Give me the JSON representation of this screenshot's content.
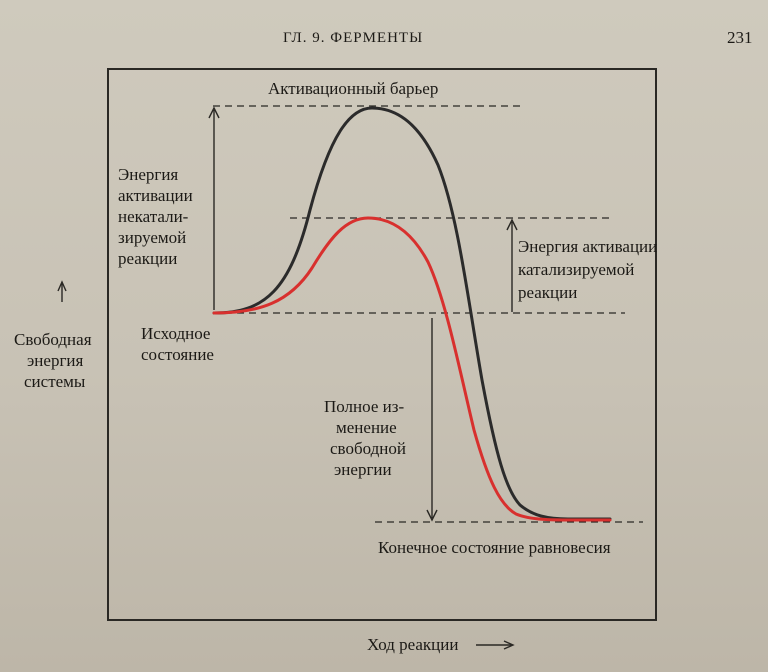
{
  "header": {
    "chapter": "ГЛ. 9. ФЕРМЕНТЫ",
    "page_number": "231"
  },
  "diagram": {
    "barrier_label": "Активационный барьер",
    "uncatalyzed_energy_label": [
      "Энергия",
      "активации",
      "некатали-",
      "зируемой",
      "реакции"
    ],
    "catalyzed_energy_label": [
      "Энергия активации",
      "катализируемой",
      "реакции"
    ],
    "y_axis_label": [
      "Свободная",
      "энергия",
      "системы"
    ],
    "initial_state_label": [
      "Исходное",
      "состояние"
    ],
    "total_change_label": [
      "Полное из-",
      "менение",
      "свободной",
      "энергии"
    ],
    "final_state_label": "Конечное состояние равновесия",
    "x_axis_label": "Ход реакции",
    "curves": [
      {
        "id": "uncatalyzed",
        "color": "#2b2b2b"
      },
      {
        "id": "catalyzed",
        "color": "#d8302e"
      }
    ]
  }
}
